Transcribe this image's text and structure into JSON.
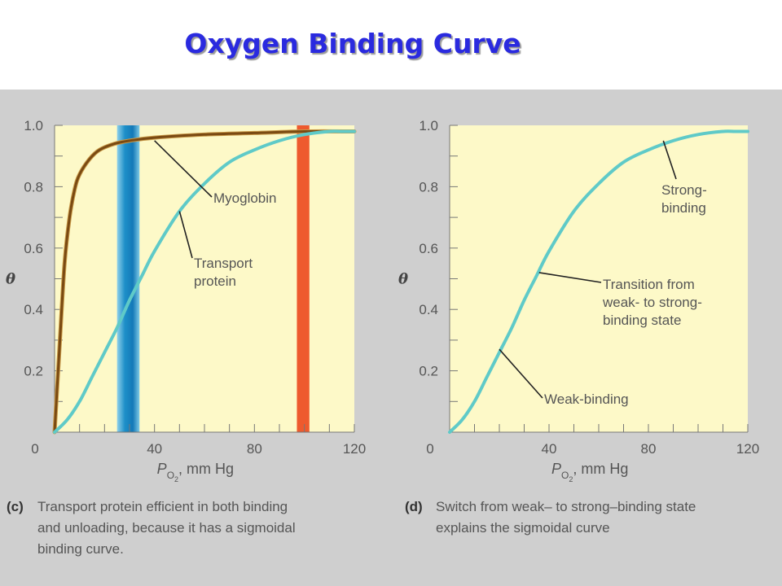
{
  "title": "Oxygen Binding Curve",
  "chart_data": [
    {
      "type": "line",
      "panel": "(c)",
      "caption": [
        "Transport protein efficient in both binding",
        "and unloading, because it has a sigmoidal",
        "binding curve."
      ],
      "xlabel": "P",
      "xlabel_sub": "O",
      "xlabel_sub2": "2",
      "xlabel_unit": ", mm Hg",
      "ylabel": "θ",
      "xlim": [
        0,
        120
      ],
      "ylim": [
        0,
        1.0
      ],
      "x_ticks": [
        "0",
        "40",
        "80",
        "120"
      ],
      "x_tick_values": [
        0,
        40,
        80,
        120
      ],
      "y_ticks": [
        "0.2",
        "0.4",
        "0.6",
        "0.8",
        "1.0"
      ],
      "y_tick_values": [
        0.2,
        0.4,
        0.6,
        0.8,
        1.0
      ],
      "bands": [
        {
          "x0": 25,
          "x1": 34,
          "color": "#1d8fc8"
        },
        {
          "x0": 97,
          "x1": 102,
          "color": "#ee5a2e"
        }
      ],
      "series": [
        {
          "color": "#7a4a12",
          "x": [
            0,
            2,
            4,
            6,
            8,
            10,
            14,
            18,
            24,
            30,
            40,
            60,
            80,
            100,
            120
          ],
          "y": [
            0,
            0.28,
            0.55,
            0.7,
            0.79,
            0.84,
            0.89,
            0.92,
            0.94,
            0.95,
            0.96,
            0.97,
            0.975,
            0.98,
            0.98
          ]
        },
        {
          "color": "#5fcac8",
          "x": [
            0,
            5,
            10,
            15,
            20,
            25,
            30,
            35,
            40,
            50,
            60,
            70,
            80,
            90,
            100,
            110,
            115,
            120
          ],
          "y": [
            0,
            0.04,
            0.1,
            0.18,
            0.26,
            0.34,
            0.43,
            0.51,
            0.59,
            0.72,
            0.81,
            0.88,
            0.92,
            0.95,
            0.97,
            0.98,
            0.98,
            0.98
          ]
        }
      ],
      "annotations": [
        {
          "lines": [
            "Myoglobin"
          ],
          "point": [
            40,
            0.95
          ]
        },
        {
          "lines": [
            "Transport",
            "protein"
          ],
          "point": [
            50,
            0.72
          ]
        }
      ]
    },
    {
      "type": "line",
      "panel": "(d)",
      "caption": [
        "Switch from weak– to strong–binding state",
        "explains the sigmoidal curve"
      ],
      "xlabel": "P",
      "xlabel_sub": "O",
      "xlabel_sub2": "2",
      "xlabel_unit": ", mm Hg",
      "ylabel": "θ",
      "xlim": [
        0,
        120
      ],
      "ylim": [
        0,
        1.0
      ],
      "x_ticks": [
        "0",
        "40",
        "80",
        "120"
      ],
      "x_tick_values": [
        0,
        40,
        80,
        120
      ],
      "y_ticks": [
        "0.2",
        "0.4",
        "0.6",
        "0.8",
        "1.0"
      ],
      "y_tick_values": [
        0.2,
        0.4,
        0.6,
        0.8,
        1.0
      ],
      "series": [
        {
          "color": "#5fcac8",
          "x": [
            0,
            5,
            10,
            15,
            20,
            25,
            30,
            35,
            40,
            50,
            60,
            70,
            80,
            90,
            100,
            110,
            115,
            120
          ],
          "y": [
            0,
            0.04,
            0.1,
            0.18,
            0.26,
            0.34,
            0.43,
            0.51,
            0.59,
            0.72,
            0.81,
            0.88,
            0.92,
            0.95,
            0.97,
            0.98,
            0.98,
            0.98
          ]
        }
      ],
      "annotations": [
        {
          "lines": [
            "Strong-",
            "binding"
          ],
          "point": [
            86,
            0.95
          ]
        },
        {
          "lines": [
            "Transition from",
            "weak- to strong-",
            "binding state"
          ],
          "point": [
            36,
            0.52
          ]
        },
        {
          "lines": [
            "Weak-binding"
          ],
          "point": [
            20,
            0.27
          ]
        }
      ]
    }
  ]
}
